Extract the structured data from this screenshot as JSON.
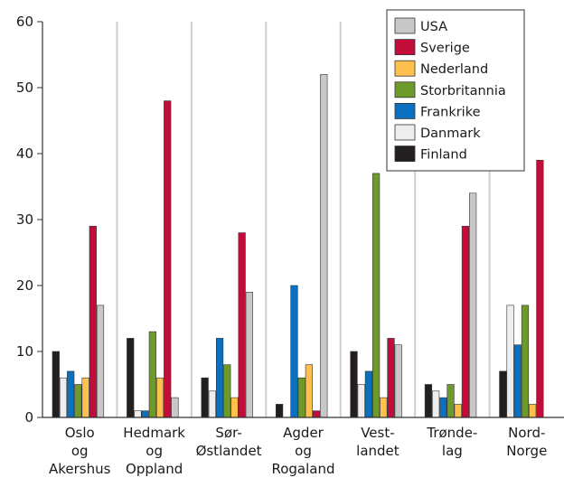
{
  "chart_data": {
    "type": "bar",
    "categories": [
      [
        "Oslo",
        "og",
        "Akershus"
      ],
      [
        "Hedmark",
        "og",
        "Oppland"
      ],
      [
        "Sør-",
        "Østlandet"
      ],
      [
        "Agder",
        "og",
        "Rogaland"
      ],
      [
        "Vest-",
        "landet"
      ],
      [
        "Trønde-",
        "lag"
      ],
      [
        "Nord-",
        "Norge"
      ]
    ],
    "series": [
      {
        "name": "Finland",
        "color": "#231f20",
        "values": [
          10,
          12,
          6,
          2,
          10,
          5,
          7
        ]
      },
      {
        "name": "Danmark",
        "color": "#eeeeee",
        "values": [
          6,
          1,
          4,
          0,
          5,
          4,
          17
        ]
      },
      {
        "name": "Frankrike",
        "color": "#0a70bf",
        "values": [
          7,
          1,
          12,
          20,
          7,
          3,
          11
        ]
      },
      {
        "name": "Storbritannia",
        "color": "#6e9a2a",
        "values": [
          5,
          13,
          8,
          6,
          37,
          5,
          17
        ]
      },
      {
        "name": "Nederland",
        "color": "#ffc04d",
        "values": [
          6,
          6,
          3,
          8,
          3,
          2,
          2
        ]
      },
      {
        "name": "Sverige",
        "color": "#c20d3a",
        "values": [
          29,
          48,
          28,
          1,
          12,
          29,
          39
        ]
      },
      {
        "name": "USA",
        "color": "#c8c8c8",
        "values": [
          17,
          3,
          19,
          52,
          11,
          34,
          0
        ]
      }
    ],
    "legend_order": [
      "USA",
      "Sverige",
      "Nederland",
      "Storbritannia",
      "Frankrike",
      "Danmark",
      "Finland"
    ],
    "legend_position": "top-right",
    "yticks": [
      0,
      10,
      20,
      30,
      40,
      50,
      60
    ],
    "ylim": [
      0,
      60
    ],
    "grid": "vertical-category-separators",
    "title": "",
    "xlabel": "",
    "ylabel": ""
  }
}
